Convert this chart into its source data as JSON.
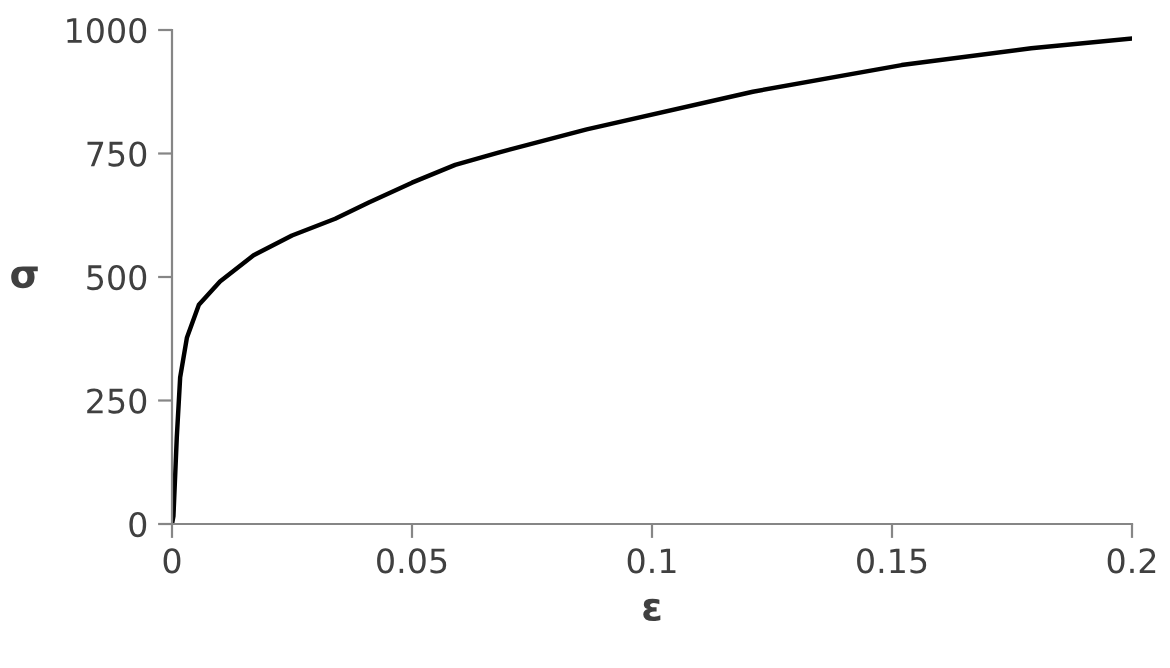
{
  "chart_data": {
    "type": "line",
    "xlabel": "ε",
    "ylabel": "σ",
    "series": [
      {
        "color": "#000000",
        "x": [
          0,
          0.0003,
          0.001,
          0.0017,
          0.0031,
          0.0056,
          0.01,
          0.017,
          0.025,
          0.034,
          0.041,
          0.05,
          0.059,
          0.068,
          0.0864,
          0.121,
          0.152,
          0.179,
          0.2
        ],
        "values": [
          0,
          16,
          176,
          297,
          377,
          444,
          491,
          544,
          584,
          618,
          651,
          691,
          727,
          752,
          799,
          875,
          929,
          963,
          983
        ]
      }
    ],
    "xlim": [
      0,
      0.2
    ],
    "ylim": [
      0,
      1000
    ],
    "xticks": [
      0,
      0.05,
      0.1,
      0.15,
      0.2
    ],
    "yticks": [
      0,
      250,
      500,
      750,
      1000
    ],
    "grid": false,
    "marker": "none",
    "line_style": "solid"
  }
}
